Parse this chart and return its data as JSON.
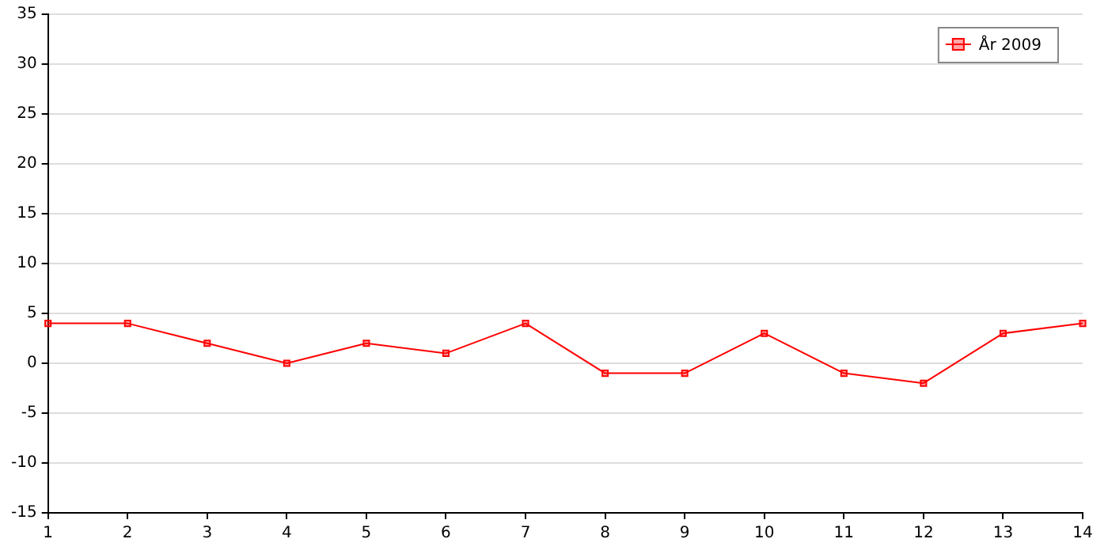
{
  "chart_data": {
    "type": "line",
    "x": [
      1,
      2,
      3,
      4,
      5,
      6,
      7,
      8,
      9,
      10,
      11,
      12,
      13,
      14
    ],
    "series": [
      {
        "name": "År 2009",
        "color": "#ff0000",
        "values": [
          4,
          4,
          2,
          0,
          2,
          1,
          4,
          -1,
          -1,
          3,
          -1,
          -2,
          3,
          4
        ]
      }
    ],
    "xlim": [
      1,
      14
    ],
    "xticks": [
      1,
      2,
      3,
      4,
      5,
      6,
      7,
      8,
      9,
      10,
      11,
      12,
      13,
      14
    ],
    "ylim": [
      -15,
      35
    ],
    "yticks": [
      -15,
      -10,
      -5,
      0,
      5,
      10,
      15,
      20,
      25,
      30,
      35
    ],
    "grid": "y",
    "legend": "top right",
    "marker": "square",
    "line_style": "solid"
  }
}
